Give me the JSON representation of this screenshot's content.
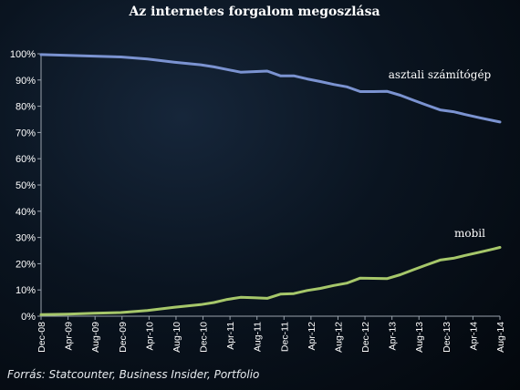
{
  "chart_data": {
    "type": "line",
    "title": "Az internetes forgalom megoszlása",
    "xlabel": "",
    "ylabel": "",
    "ylim": [
      0,
      100
    ],
    "y_ticks": [
      "0%",
      "10%",
      "20%",
      "30%",
      "40%",
      "50%",
      "60%",
      "70%",
      "80%",
      "90%",
      "100%"
    ],
    "x_ticks": [
      "Dec-08",
      "Apr-09",
      "Aug-09",
      "Dec-09",
      "Apr-10",
      "Aug-10",
      "Dec-10",
      "Apr-11",
      "Aug-11",
      "Dec-11",
      "Apr-12",
      "Aug-12",
      "Dec-12",
      "Apr-13",
      "Aug-13",
      "Dec-13",
      "Apr-14",
      "Aug-14"
    ],
    "x_range": [
      "2008-12",
      "2014-09"
    ],
    "grid": false,
    "series": [
      {
        "name": "asztali számítógép",
        "color": "#7b93d1",
        "points": [
          [
            "2008-12",
            99.7
          ],
          [
            "2009-04",
            99.4
          ],
          [
            "2009-08",
            99.1
          ],
          [
            "2009-12",
            98.8
          ],
          [
            "2010-04",
            98.0
          ],
          [
            "2010-08",
            96.8
          ],
          [
            "2010-12",
            95.8
          ],
          [
            "2011-02",
            95.0
          ],
          [
            "2011-04",
            94.0
          ],
          [
            "2011-06",
            93.0
          ],
          [
            "2011-08",
            93.2
          ],
          [
            "2011-10",
            93.4
          ],
          [
            "2011-12",
            91.6
          ],
          [
            "2012-02",
            91.6
          ],
          [
            "2012-04",
            90.4
          ],
          [
            "2012-06",
            89.4
          ],
          [
            "2012-08",
            88.3
          ],
          [
            "2012-10",
            87.4
          ],
          [
            "2012-12",
            85.6
          ],
          [
            "2013-02",
            85.6
          ],
          [
            "2013-04",
            85.7
          ],
          [
            "2013-06",
            84.2
          ],
          [
            "2013-08",
            82.3
          ],
          [
            "2013-10",
            80.4
          ],
          [
            "2013-12",
            78.6
          ],
          [
            "2014-02",
            77.9
          ],
          [
            "2014-04",
            76.7
          ],
          [
            "2014-06",
            75.6
          ],
          [
            "2014-08",
            74.5
          ],
          [
            "2014-09",
            74.0
          ]
        ]
      },
      {
        "name": "mobil",
        "color": "#a6c76a",
        "points": [
          [
            "2008-12",
            0.6
          ],
          [
            "2009-04",
            0.8
          ],
          [
            "2009-08",
            1.1
          ],
          [
            "2009-12",
            1.4
          ],
          [
            "2010-04",
            2.2
          ],
          [
            "2010-08",
            3.4
          ],
          [
            "2010-12",
            4.4
          ],
          [
            "2011-02",
            5.2
          ],
          [
            "2011-04",
            6.4
          ],
          [
            "2011-06",
            7.2
          ],
          [
            "2011-08",
            7.0
          ],
          [
            "2011-10",
            6.8
          ],
          [
            "2011-12",
            8.4
          ],
          [
            "2012-02",
            8.6
          ],
          [
            "2012-04",
            9.8
          ],
          [
            "2012-06",
            10.6
          ],
          [
            "2012-08",
            11.7
          ],
          [
            "2012-10",
            12.6
          ],
          [
            "2012-12",
            14.5
          ],
          [
            "2013-02",
            14.4
          ],
          [
            "2013-04",
            14.3
          ],
          [
            "2013-06",
            15.8
          ],
          [
            "2013-08",
            17.7
          ],
          [
            "2013-10",
            19.6
          ],
          [
            "2013-12",
            21.4
          ],
          [
            "2014-02",
            22.1
          ],
          [
            "2014-04",
            23.3
          ],
          [
            "2014-06",
            24.4
          ],
          [
            "2014-08",
            25.6
          ],
          [
            "2014-09",
            26.2
          ]
        ]
      }
    ]
  },
  "source_text": "Forrás: Statcounter, Business Insider, Portfolio"
}
